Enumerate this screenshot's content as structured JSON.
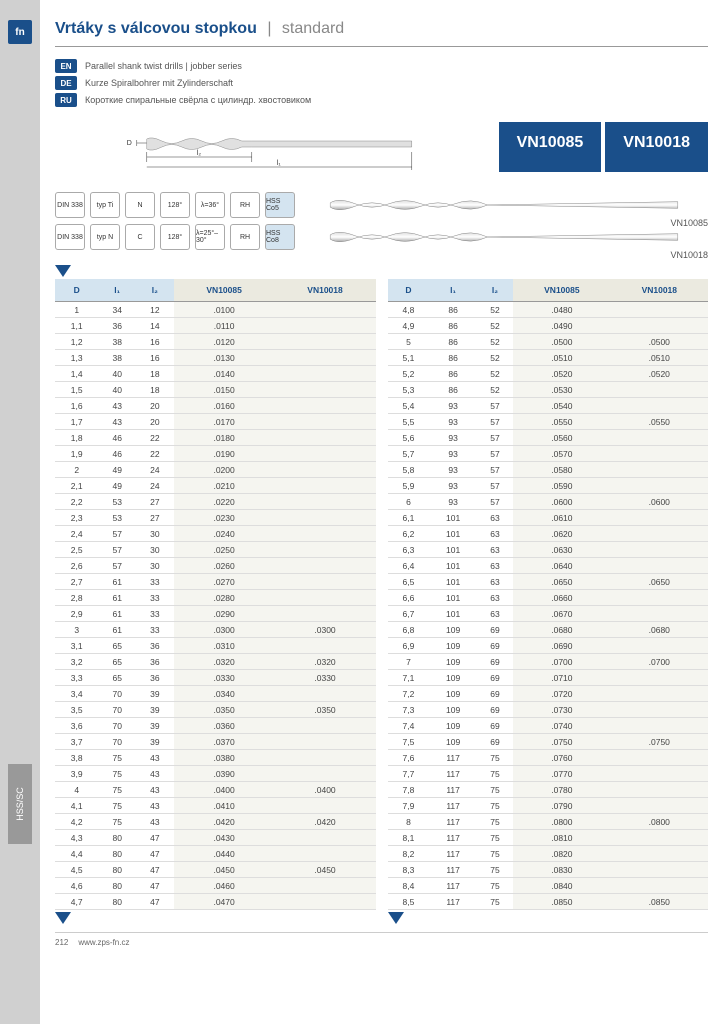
{
  "logo": "fn",
  "sidebar_label": "HSS/SC",
  "title_main": "Vrtáky s válcovou stopkou",
  "title_sep": "|",
  "title_sub": "standard",
  "langs": [
    {
      "code": "EN",
      "text": "Parallel shank twist drills | jobber series"
    },
    {
      "code": "DE",
      "text": "Kurze Spiralbohrer mit Zylinderschaft"
    },
    {
      "code": "RU",
      "text": "Короткие спиральные свёрла с цилиндр. хвостовиком"
    }
  ],
  "diagram": {
    "l1": "l₁",
    "l2": "l₂",
    "d": "D"
  },
  "products": [
    "VN10085",
    "VN10018"
  ],
  "spec_rows": [
    {
      "badges": [
        "DIN 338",
        "typ Ti",
        "N",
        "128°",
        "λ=36°",
        "RH",
        "HSS Co5"
      ],
      "label": "VN10085"
    },
    {
      "badges": [
        "DIN 338",
        "typ N",
        "C",
        "128°",
        "λ=25°–30°",
        "RH",
        "HSS Co8"
      ],
      "label": "VN10018"
    }
  ],
  "table_headers": [
    "D",
    "l₁",
    "l₂",
    "VN10085",
    "VN10018"
  ],
  "table_left": [
    [
      "1",
      "34",
      "12",
      ".0100",
      ""
    ],
    [
      "1,1",
      "36",
      "14",
      ".0110",
      ""
    ],
    [
      "1,2",
      "38",
      "16",
      ".0120",
      ""
    ],
    [
      "1,3",
      "38",
      "16",
      ".0130",
      ""
    ],
    [
      "1,4",
      "40",
      "18",
      ".0140",
      ""
    ],
    [
      "1,5",
      "40",
      "18",
      ".0150",
      ""
    ],
    [
      "1,6",
      "43",
      "20",
      ".0160",
      ""
    ],
    [
      "1,7",
      "43",
      "20",
      ".0170",
      ""
    ],
    [
      "1,8",
      "46",
      "22",
      ".0180",
      ""
    ],
    [
      "1,9",
      "46",
      "22",
      ".0190",
      ""
    ],
    [
      "2",
      "49",
      "24",
      ".0200",
      ""
    ],
    [
      "2,1",
      "49",
      "24",
      ".0210",
      ""
    ],
    [
      "2,2",
      "53",
      "27",
      ".0220",
      ""
    ],
    [
      "2,3",
      "53",
      "27",
      ".0230",
      ""
    ],
    [
      "2,4",
      "57",
      "30",
      ".0240",
      ""
    ],
    [
      "2,5",
      "57",
      "30",
      ".0250",
      ""
    ],
    [
      "2,6",
      "57",
      "30",
      ".0260",
      ""
    ],
    [
      "2,7",
      "61",
      "33",
      ".0270",
      ""
    ],
    [
      "2,8",
      "61",
      "33",
      ".0280",
      ""
    ],
    [
      "2,9",
      "61",
      "33",
      ".0290",
      ""
    ],
    [
      "3",
      "61",
      "33",
      ".0300",
      ".0300"
    ],
    [
      "3,1",
      "65",
      "36",
      ".0310",
      ""
    ],
    [
      "3,2",
      "65",
      "36",
      ".0320",
      ".0320"
    ],
    [
      "3,3",
      "65",
      "36",
      ".0330",
      ".0330"
    ],
    [
      "3,4",
      "70",
      "39",
      ".0340",
      ""
    ],
    [
      "3,5",
      "70",
      "39",
      ".0350",
      ".0350"
    ],
    [
      "3,6",
      "70",
      "39",
      ".0360",
      ""
    ],
    [
      "3,7",
      "70",
      "39",
      ".0370",
      ""
    ],
    [
      "3,8",
      "75",
      "43",
      ".0380",
      ""
    ],
    [
      "3,9",
      "75",
      "43",
      ".0390",
      ""
    ],
    [
      "4",
      "75",
      "43",
      ".0400",
      ".0400"
    ],
    [
      "4,1",
      "75",
      "43",
      ".0410",
      ""
    ],
    [
      "4,2",
      "75",
      "43",
      ".0420",
      ".0420"
    ],
    [
      "4,3",
      "80",
      "47",
      ".0430",
      ""
    ],
    [
      "4,4",
      "80",
      "47",
      ".0440",
      ""
    ],
    [
      "4,5",
      "80",
      "47",
      ".0450",
      ".0450"
    ],
    [
      "4,6",
      "80",
      "47",
      ".0460",
      ""
    ],
    [
      "4,7",
      "80",
      "47",
      ".0470",
      ""
    ]
  ],
  "table_right": [
    [
      "4,8",
      "86",
      "52",
      ".0480",
      ""
    ],
    [
      "4,9",
      "86",
      "52",
      ".0490",
      ""
    ],
    [
      "5",
      "86",
      "52",
      ".0500",
      ".0500"
    ],
    [
      "5,1",
      "86",
      "52",
      ".0510",
      ".0510"
    ],
    [
      "5,2",
      "86",
      "52",
      ".0520",
      ".0520"
    ],
    [
      "5,3",
      "86",
      "52",
      ".0530",
      ""
    ],
    [
      "5,4",
      "93",
      "57",
      ".0540",
      ""
    ],
    [
      "5,5",
      "93",
      "57",
      ".0550",
      ".0550"
    ],
    [
      "5,6",
      "93",
      "57",
      ".0560",
      ""
    ],
    [
      "5,7",
      "93",
      "57",
      ".0570",
      ""
    ],
    [
      "5,8",
      "93",
      "57",
      ".0580",
      ""
    ],
    [
      "5,9",
      "93",
      "57",
      ".0590",
      ""
    ],
    [
      "6",
      "93",
      "57",
      ".0600",
      ".0600"
    ],
    [
      "6,1",
      "101",
      "63",
      ".0610",
      ""
    ],
    [
      "6,2",
      "101",
      "63",
      ".0620",
      ""
    ],
    [
      "6,3",
      "101",
      "63",
      ".0630",
      ""
    ],
    [
      "6,4",
      "101",
      "63",
      ".0640",
      ""
    ],
    [
      "6,5",
      "101",
      "63",
      ".0650",
      ".0650"
    ],
    [
      "6,6",
      "101",
      "63",
      ".0660",
      ""
    ],
    [
      "6,7",
      "101",
      "63",
      ".0670",
      ""
    ],
    [
      "6,8",
      "109",
      "69",
      ".0680",
      ".0680"
    ],
    [
      "6,9",
      "109",
      "69",
      ".0690",
      ""
    ],
    [
      "7",
      "109",
      "69",
      ".0700",
      ".0700"
    ],
    [
      "7,1",
      "109",
      "69",
      ".0710",
      ""
    ],
    [
      "7,2",
      "109",
      "69",
      ".0720",
      ""
    ],
    [
      "7,3",
      "109",
      "69",
      ".0730",
      ""
    ],
    [
      "7,4",
      "109",
      "69",
      ".0740",
      ""
    ],
    [
      "7,5",
      "109",
      "69",
      ".0750",
      ".0750"
    ],
    [
      "7,6",
      "117",
      "75",
      ".0760",
      ""
    ],
    [
      "7,7",
      "117",
      "75",
      ".0770",
      ""
    ],
    [
      "7,8",
      "117",
      "75",
      ".0780",
      ""
    ],
    [
      "7,9",
      "117",
      "75",
      ".0790",
      ""
    ],
    [
      "8",
      "117",
      "75",
      ".0800",
      ".0800"
    ],
    [
      "8,1",
      "117",
      "75",
      ".0810",
      ""
    ],
    [
      "8,2",
      "117",
      "75",
      ".0820",
      ""
    ],
    [
      "8,3",
      "117",
      "75",
      ".0830",
      ""
    ],
    [
      "8,4",
      "117",
      "75",
      ".0840",
      ""
    ],
    [
      "8,5",
      "117",
      "75",
      ".0850",
      ".0850"
    ]
  ],
  "footer": {
    "page": "212",
    "url": "www.zps-fn.cz"
  },
  "colors": {
    "brand": "#1a4f8a",
    "header_bg": "#d4e4f0",
    "alt_bg": "#f5f5f0",
    "sidebar": "#d0d0d0",
    "text": "#444"
  }
}
